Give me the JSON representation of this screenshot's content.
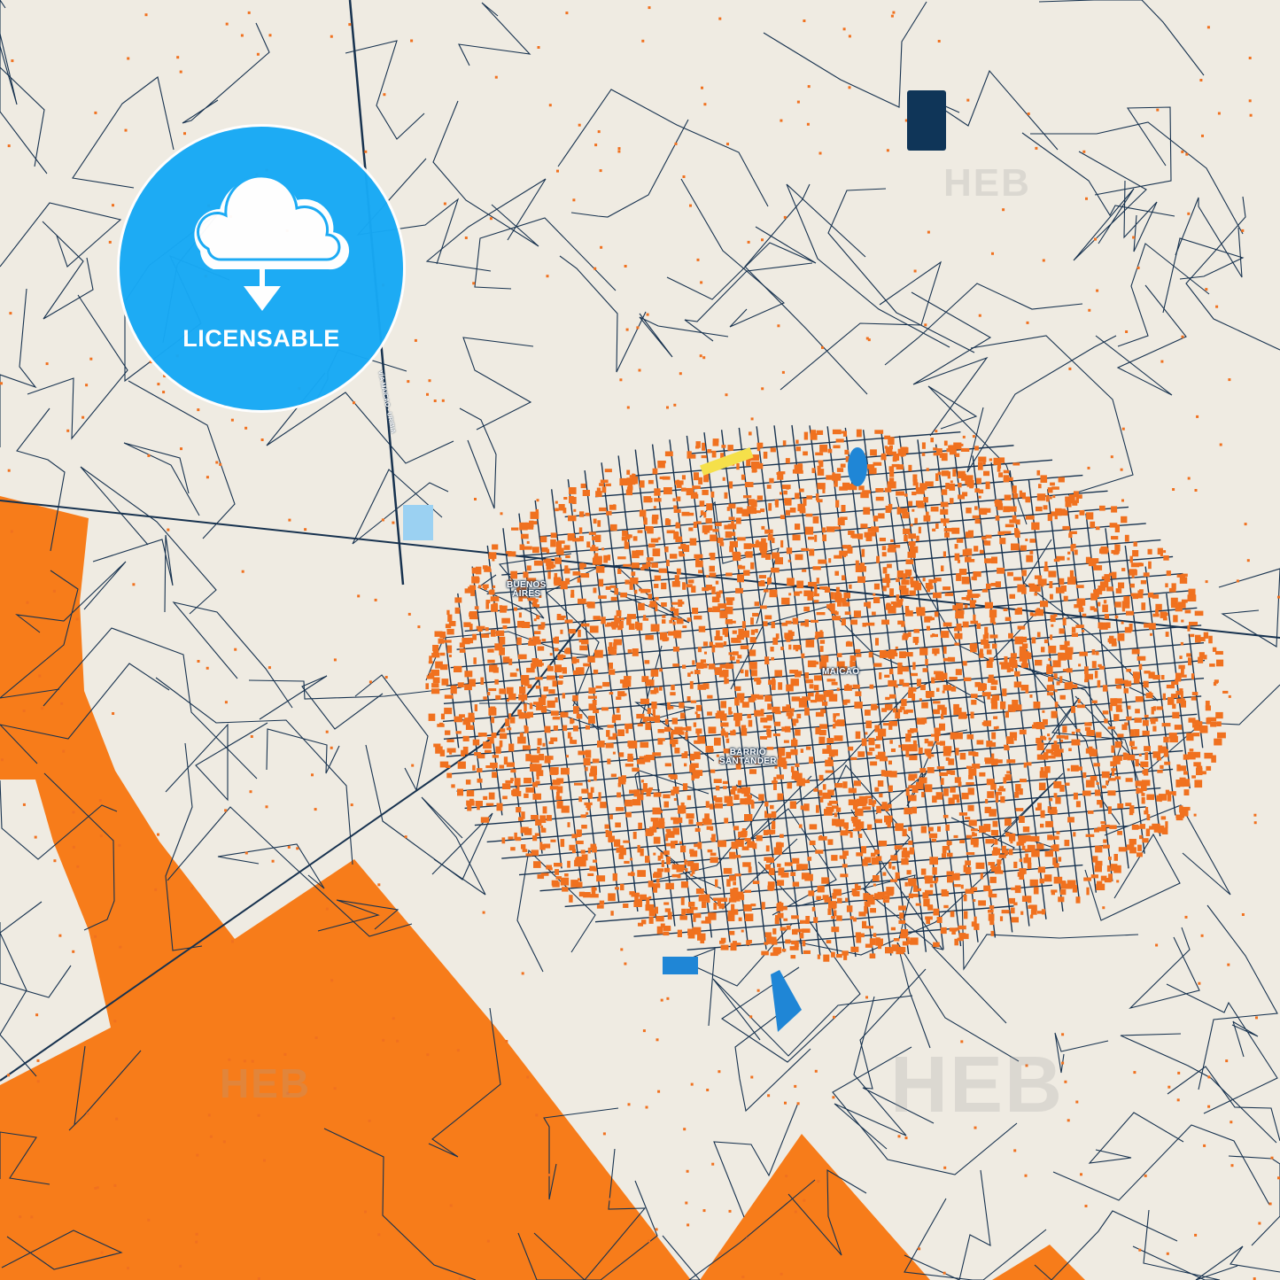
{
  "map": {
    "colors": {
      "land": "#EFEBE2",
      "zone": "#F77C1A",
      "roads": "#17324F",
      "buildings": "#F0711F",
      "water": "#1F86D6",
      "accent": "#F5E04A"
    },
    "places": [
      {
        "name": "BUENOS AIRES",
        "line1": "BUENOS",
        "line2": "AIRES"
      },
      {
        "name": "MAICAO"
      },
      {
        "name": "BARRIO SANTANDER",
        "line1": "BARRIO",
        "line2": "SANTANDER"
      }
    ],
    "roads": [
      "VÍA MAICAO - URIBIA"
    ]
  },
  "badge": {
    "label": "LICENSABLE",
    "icon": "cloud-download-icon"
  },
  "watermark": "HEB"
}
